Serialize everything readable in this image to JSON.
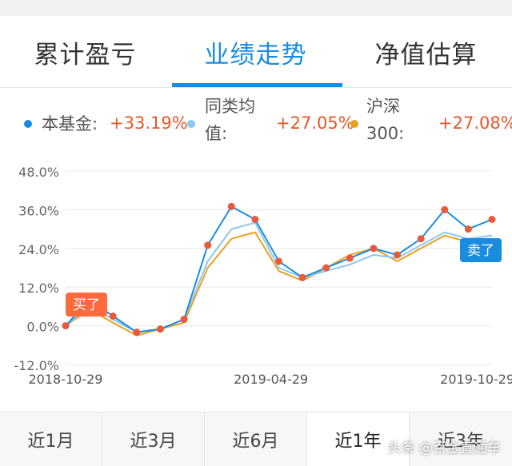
{
  "tabs": [
    {
      "label": "累计盈亏",
      "active": false
    },
    {
      "label": "业绩走势",
      "active": true
    },
    {
      "label": "净值估算",
      "active": false
    }
  ],
  "legend": [
    {
      "label": "本基金:",
      "value": "+33.19%",
      "color": "#1a8ce0"
    },
    {
      "label_lines": [
        "同类均",
        "值:"
      ],
      "value": "+27.05%",
      "color": "#8cc8f0"
    },
    {
      "label_lines": [
        "沪深",
        "300:"
      ],
      "value": "+27.08%",
      "color": "#e8a020"
    }
  ],
  "bottom_tabs": [
    {
      "label": "近1月",
      "active": false
    },
    {
      "label": "近3月",
      "active": false
    },
    {
      "label": "近6月",
      "active": false
    },
    {
      "label": "近1年",
      "active": true
    },
    {
      "label": "近3年",
      "active": false
    }
  ],
  "watermark": "头条 @百金直通车",
  "chart_data": {
    "type": "line",
    "x": [
      "2018-10-29",
      "2018-11-19",
      "2018-12-10",
      "2018-12-31",
      "2019-01-21",
      "2019-02-11",
      "2019-03-04",
      "2019-03-25",
      "2019-04-15",
      "2019-05-06",
      "2019-05-27",
      "2019-06-17",
      "2019-07-08",
      "2019-07-29",
      "2019-08-19",
      "2019-09-09",
      "2019-09-30",
      "2019-10-21",
      "2019-11-11"
    ],
    "xticks": [
      "2018-10-29",
      "2019-04-29",
      "2019-10-29"
    ],
    "yticks": [
      "48.0%",
      "36.0%",
      "24.0%",
      "12.0%",
      "0.0%",
      "-12.0%"
    ],
    "ylim": [
      -12,
      48
    ],
    "series": [
      {
        "name": "本基金",
        "color": "#1a8ce0",
        "values": [
          0,
          8,
          3,
          -2,
          -1,
          2,
          25,
          37,
          33,
          20,
          15,
          18,
          21,
          24,
          22,
          27,
          36,
          30,
          33
        ]
      },
      {
        "name": "同类均值",
        "color": "#8cc8f0",
        "values": [
          0,
          6,
          2,
          -2,
          -1,
          2,
          20,
          30,
          32,
          18,
          15,
          17,
          19,
          22,
          21,
          25,
          29,
          27,
          28
        ]
      },
      {
        "name": "沪深300",
        "color": "#e8a020",
        "values": [
          0,
          5,
          1,
          -3,
          -1,
          1,
          18,
          27,
          29,
          17,
          14,
          18,
          22,
          24,
          20,
          24,
          28,
          26,
          27
        ]
      }
    ],
    "markers": [
      {
        "label": "买了",
        "color": "#ff6a3d",
        "x": "2018-10-29"
      },
      {
        "label": "卖了",
        "color": "#1a8ce0",
        "x": "2019-10-29"
      }
    ]
  }
}
